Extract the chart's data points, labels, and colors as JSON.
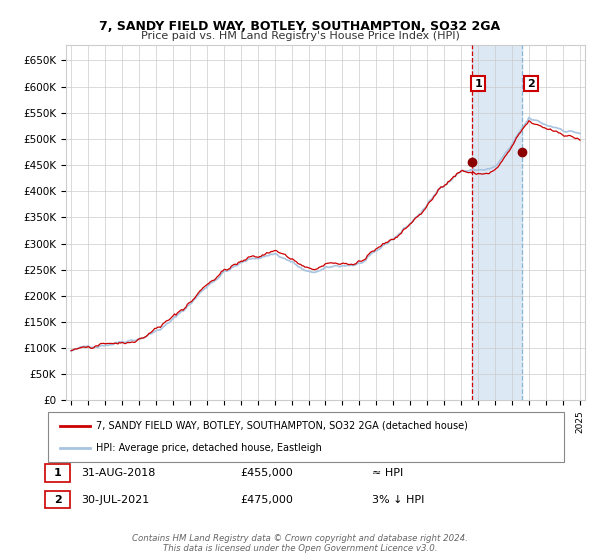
{
  "title": "7, SANDY FIELD WAY, BOTLEY, SOUTHAMPTON, SO32 2GA",
  "subtitle": "Price paid vs. HM Land Registry's House Price Index (HPI)",
  "legend_line1": "7, SANDY FIELD WAY, BOTLEY, SOUTHAMPTON, SO32 2GA (detached house)",
  "legend_line2": "HPI: Average price, detached house, Eastleigh",
  "annotation1_label": "1",
  "annotation1_date": "31-AUG-2018",
  "annotation1_price": "£455,000",
  "annotation1_hpi": "≈ HPI",
  "annotation2_label": "2",
  "annotation2_date": "30-JUL-2021",
  "annotation2_price": "£475,000",
  "annotation2_hpi": "3% ↓ HPI",
  "footer": "Contains HM Land Registry data © Crown copyright and database right 2024.\nThis data is licensed under the Open Government Licence v3.0.",
  "hpi_color": "#a8c4e0",
  "price_color": "#cc0000",
  "marker_color": "#8b0000",
  "annotation_box_color": "#cc0000",
  "vline1_color": "#cc0000",
  "vline1_style": "--",
  "vline2_color": "#8ab4d4",
  "vline2_style": "--",
  "highlight_color": "#dce9f5",
  "background_color": "#ffffff",
  "grid_color": "#cccccc",
  "ylim": [
    0,
    680000
  ],
  "yticks": [
    0,
    50000,
    100000,
    150000,
    200000,
    250000,
    300000,
    350000,
    400000,
    450000,
    500000,
    550000,
    600000,
    650000
  ],
  "year_start": 1995,
  "year_end": 2025,
  "sale1_year": 2018.667,
  "sale1_price": 455000,
  "sale2_year": 2021.583,
  "sale2_price": 475000
}
